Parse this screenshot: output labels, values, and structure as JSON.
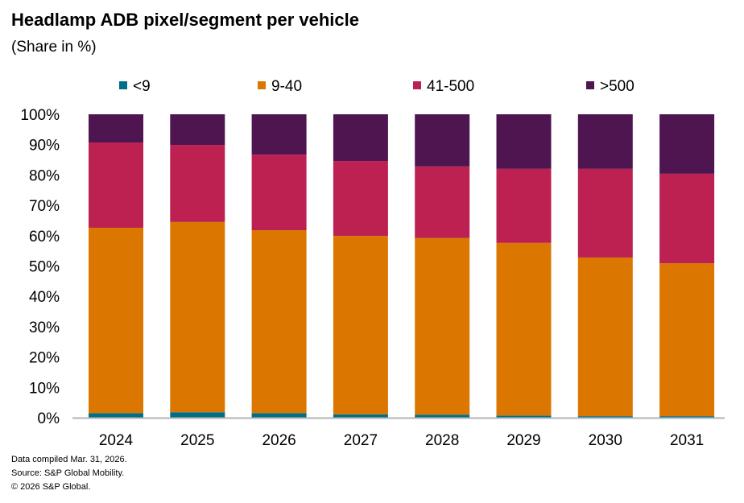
{
  "chart_data": {
    "type": "bar",
    "stacked": true,
    "title": "Headlamp  ADB pixel/segment  per vehicle",
    "subtitle": "(Share in %)",
    "categories": [
      "2024",
      "2025",
      "2026",
      "2027",
      "2028",
      "2029",
      "2030",
      "2031"
    ],
    "series": [
      {
        "name": "<9",
        "color": "#006e8a",
        "values": [
          1.5,
          1.8,
          1.5,
          1.1,
          1.0,
          0.7,
          0.5,
          0.5
        ]
      },
      {
        "name": "9-40",
        "color": "#db7700",
        "values": [
          61.1,
          62.7,
          60.3,
          58.8,
          58.2,
          56.9,
          52.3,
          50.4
        ]
      },
      {
        "name": "41-500",
        "color": "#bc2152",
        "values": [
          28.1,
          25.4,
          24.9,
          24.7,
          23.6,
          24.4,
          29.2,
          29.5
        ]
      },
      {
        "name": ">500",
        "color": "#4e1551",
        "values": [
          9.3,
          10.1,
          13.3,
          15.4,
          17.2,
          18.0,
          18.0,
          19.6
        ]
      }
    ],
    "ylim": [
      0,
      100
    ],
    "yticks": [
      "0%",
      "10%",
      "20%",
      "30%",
      "40%",
      "50%",
      "60%",
      "70%",
      "80%",
      "90%",
      "100%"
    ],
    "legend": "top",
    "grid": false
  },
  "footer": [
    "Data compiled Mar. 31, 2026.",
    "Source: S&P Global Mobility.",
    "© 2026 S&P Global."
  ]
}
